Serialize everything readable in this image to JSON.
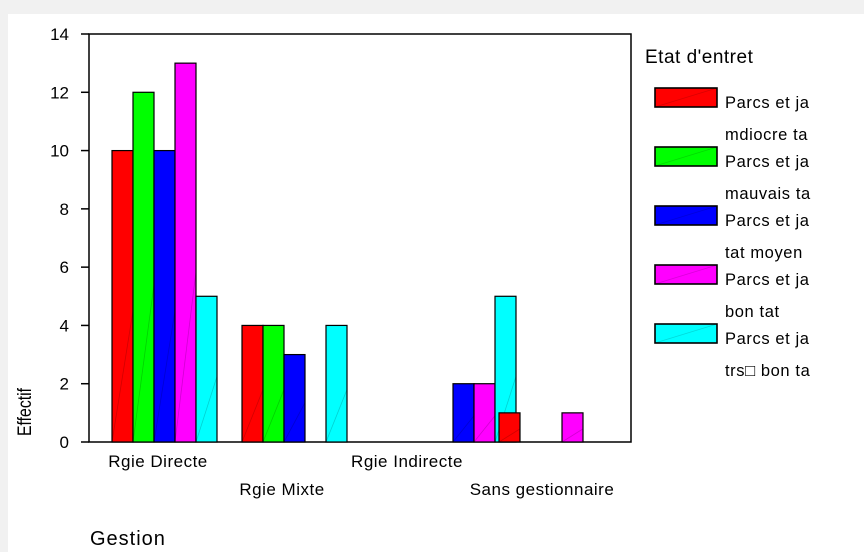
{
  "chart_data": {
    "type": "bar",
    "xlabel": "Gestion",
    "ylabel": "Effectif",
    "ylim": [
      0,
      14
    ],
    "yticks": [
      0,
      2,
      4,
      6,
      8,
      10,
      12,
      14
    ],
    "grid": false,
    "legend_title": "Etat d'entret",
    "legend_position": "right",
    "categories": [
      "Rgie Directe",
      "Rgie Mixte",
      "Rgie Indirecte",
      "Sans gestionnaire"
    ],
    "series": [
      {
        "name": "Parcs et ja mdiocre ta",
        "legend_lines": [
          "Parcs et ja",
          "mdiocre ta"
        ],
        "color": "#ff0000",
        "values": [
          10,
          4,
          0,
          1
        ]
      },
      {
        "name": "Parcs et ja mauvais ta",
        "legend_lines": [
          "Parcs et ja",
          "mauvais ta"
        ],
        "color": "#00ff00",
        "values": [
          12,
          4,
          0,
          0
        ]
      },
      {
        "name": "Parcs et ja tat moyen",
        "legend_lines": [
          "Parcs et ja",
          "tat  moyen"
        ],
        "color": "#0000ff",
        "values": [
          10,
          3,
          2,
          0
        ]
      },
      {
        "name": "Parcs et ja bon tat",
        "legend_lines": [
          "Parcs et ja",
          "bon tat"
        ],
        "color": "#ff00ff",
        "values": [
          13,
          0,
          2,
          1
        ]
      },
      {
        "name": "Parcs et ja trs bon ta",
        "legend_lines": [
          "Parcs et ja",
          "trs□ bon ta"
        ],
        "color": "#00ffff",
        "values": [
          5,
          4,
          5,
          0
        ]
      }
    ]
  }
}
